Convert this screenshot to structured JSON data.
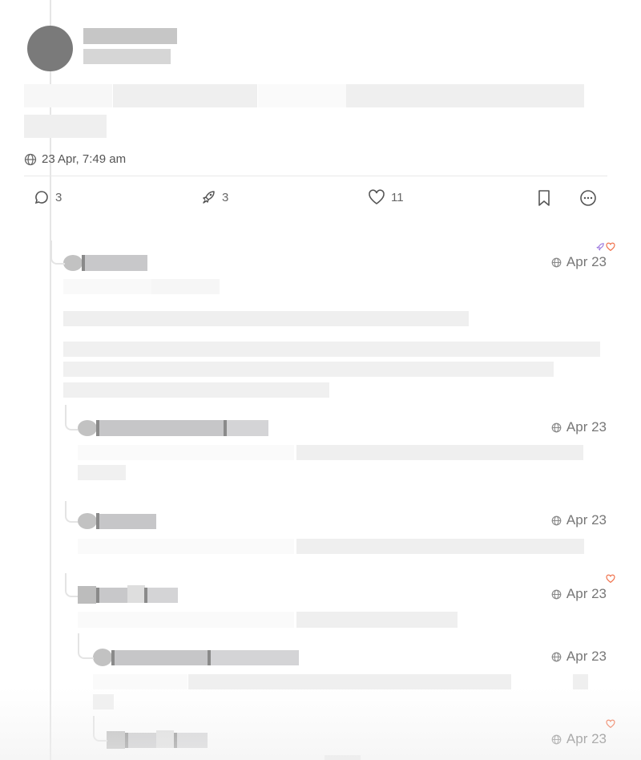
{
  "post": {
    "timestamp": "23 Apr, 7:49 am",
    "visibility_icon": "globe-icon",
    "actions": {
      "replies": "3",
      "boosts": "3",
      "favourites": "11"
    }
  },
  "replies": [
    {
      "date": "Apr 23",
      "reactions": [
        "boost",
        "favourite"
      ]
    },
    {
      "date": "Apr 23",
      "reactions": []
    },
    {
      "date": "Apr 23",
      "reactions": []
    },
    {
      "date": "Apr 23",
      "reactions": [
        "favourite"
      ]
    },
    {
      "date": "Apr 23",
      "reactions": []
    },
    {
      "date": "Apr 23",
      "reactions": [
        "favourite"
      ]
    }
  ],
  "colors": {
    "boost": "#a07de0",
    "favourite": "#f0704a",
    "redaction": "#c4c4c6"
  }
}
